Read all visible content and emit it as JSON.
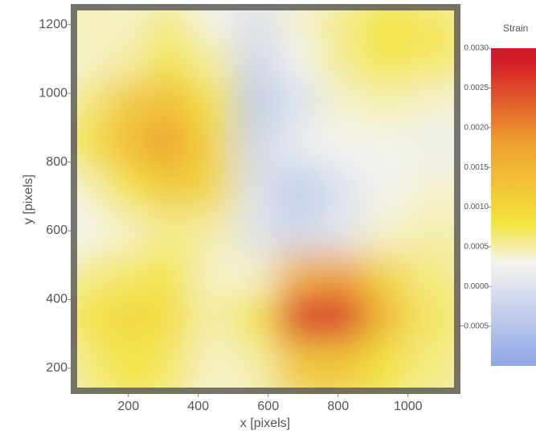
{
  "chart_data": {
    "type": "heatmap",
    "xlabel": "x  [pixels]",
    "ylabel": "y  [pixels]",
    "colorbar_title": "Strain",
    "xlim": [
      35,
      1150
    ],
    "ylim": [
      125,
      1260
    ],
    "xticks": [
      200,
      400,
      600,
      800,
      1000
    ],
    "yticks": [
      200,
      400,
      600,
      800,
      1000,
      1200
    ],
    "x": [
      97,
      221,
      345,
      469,
      593,
      717,
      841,
      965,
      1089
    ],
    "y": [
      1197,
      1071,
      945,
      819,
      693,
      567,
      441,
      315,
      189
    ],
    "z": [
      [
        0.0005,
        0.0004,
        0.0006,
        0.0003,
        0.0,
        0.0004,
        0.0006,
        0.0008,
        0.0007
      ],
      [
        0.0004,
        0.0005,
        0.0008,
        0.0005,
        -0.0002,
        0.0003,
        0.0006,
        0.0008,
        0.0007
      ],
      [
        0.0006,
        0.0012,
        0.0014,
        0.0008,
        -0.0004,
        0.0,
        0.0004,
        0.0005,
        0.0004
      ],
      [
        0.0008,
        0.0014,
        0.0018,
        0.001,
        -0.0002,
        0.0002,
        0.0003,
        0.0003,
        0.0002
      ],
      [
        0.0004,
        0.0008,
        0.0012,
        0.001,
        0.0,
        -0.0004,
        0.0,
        0.0003,
        0.0004
      ],
      [
        0.0003,
        0.0004,
        0.0006,
        0.0005,
        0.0,
        -0.0002,
        0.0001,
        0.0004,
        0.0005
      ],
      [
        0.0006,
        0.0007,
        0.0008,
        0.0004,
        0.0004,
        0.0016,
        0.0018,
        0.001,
        0.0006
      ],
      [
        0.0008,
        0.001,
        0.0009,
        0.0005,
        0.0008,
        0.0028,
        0.0028,
        0.0014,
        0.0007
      ],
      [
        0.0006,
        0.0008,
        0.0007,
        0.0004,
        0.0005,
        0.0012,
        0.0012,
        0.0008,
        0.0006
      ]
    ],
    "clim": [
      -0.001,
      0.003
    ],
    "cticks": [
      {
        "value": 0.003,
        "label": "0.0030"
      },
      {
        "value": 0.0025,
        "label": "0.0025"
      },
      {
        "value": 0.002,
        "label": "0.0020"
      },
      {
        "value": 0.0015,
        "label": "0.0015"
      },
      {
        "value": 0.001,
        "label": "0.0010"
      },
      {
        "value": 0.0005,
        "label": "0.0005"
      },
      {
        "value": 0,
        "label": "0.0000"
      },
      {
        "value": -0.0005,
        "label": "−0.0005"
      }
    ],
    "colorscale": [
      [
        -0.001,
        "#8fa6e6"
      ],
      [
        0.0003,
        "#f4f4ee"
      ],
      [
        0.0008,
        "#f3e43c"
      ],
      [
        0.0018,
        "#eea030"
      ],
      [
        0.0028,
        "#d6202a"
      ],
      [
        0.003,
        "#cc1a28"
      ]
    ]
  }
}
